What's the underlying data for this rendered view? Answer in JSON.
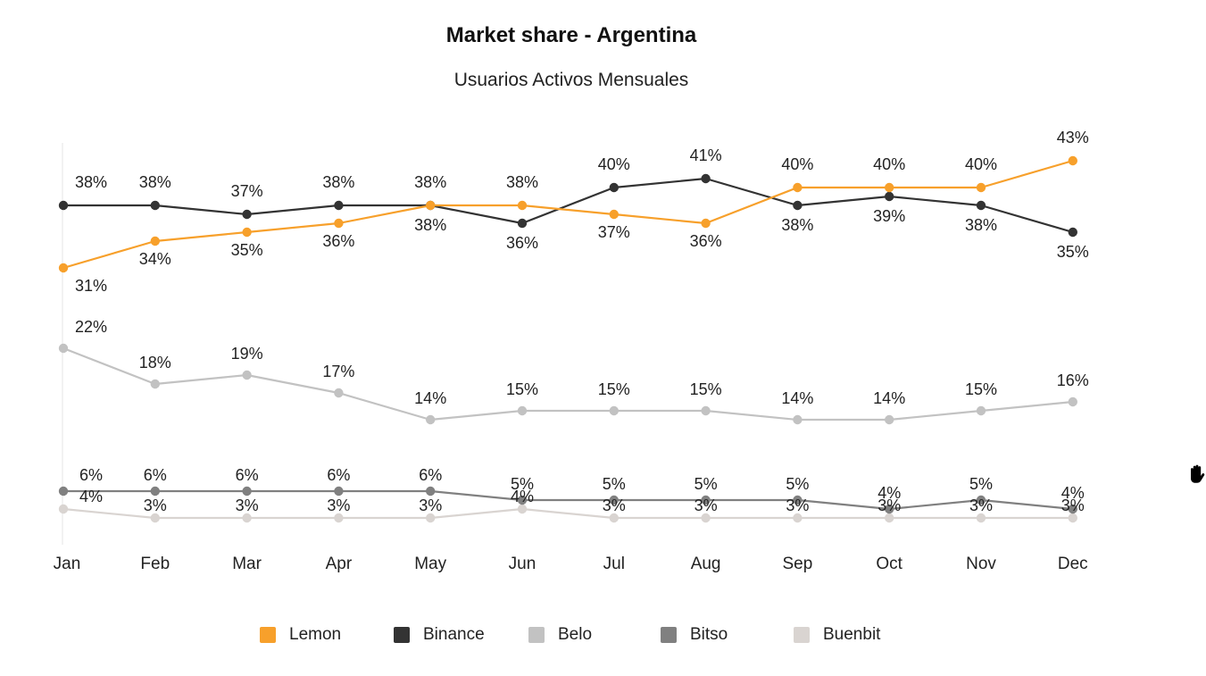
{
  "chart_data": {
    "type": "line",
    "title": "Market share - Argentina",
    "subtitle": "Usuarios Activos Mensuales",
    "xlabel": "",
    "ylabel": "",
    "categories": [
      "Jan",
      "Feb",
      "Mar",
      "Apr",
      "May",
      "Jun",
      "Jul",
      "Aug",
      "Sep",
      "Oct",
      "Nov",
      "Dec"
    ],
    "ylim": [
      0,
      45
    ],
    "grid": false,
    "legend_position": "bottom",
    "series": [
      {
        "name": "Lemon",
        "color": "#f7a02b",
        "values": [
          31,
          34,
          35,
          36,
          38,
          38,
          37,
          36,
          40,
          40,
          40,
          43
        ],
        "labels": [
          "31%",
          "34%",
          "35%",
          "36%",
          "38%",
          "38%",
          "37%",
          "36%",
          "40%",
          "40%",
          "40%",
          "43%"
        ]
      },
      {
        "name": "Binance",
        "color": "#333333",
        "values": [
          38,
          38,
          37,
          38,
          38,
          36,
          40,
          41,
          38,
          39,
          38,
          35
        ],
        "labels": [
          "38%",
          "38%",
          "37%",
          "38%",
          "38%",
          "36%",
          "40%",
          "41%",
          "38%",
          "39%",
          "38%",
          "35%"
        ]
      },
      {
        "name": "Belo",
        "color": "#c2c2c2",
        "values": [
          22,
          18,
          19,
          17,
          14,
          15,
          15,
          15,
          14,
          14,
          15,
          16
        ],
        "labels": [
          "22%",
          "18%",
          "19%",
          "17%",
          "14%",
          "15%",
          "15%",
          "15%",
          "14%",
          "14%",
          "15%",
          "16%"
        ]
      },
      {
        "name": "Bitso",
        "color": "#808080",
        "values": [
          6,
          6,
          6,
          6,
          6,
          5,
          5,
          5,
          5,
          4,
          5,
          4
        ],
        "labels": [
          "6%",
          "6%",
          "6%",
          "6%",
          "6%",
          "5%",
          "5%",
          "5%",
          "5%",
          "4%",
          "5%",
          "4%"
        ]
      },
      {
        "name": "Buenbit",
        "color": "#d9d4d1",
        "values": [
          4,
          3,
          3,
          3,
          3,
          4,
          3,
          3,
          3,
          3,
          3,
          3
        ],
        "labels": [
          "4%",
          "3%",
          "3%",
          "3%",
          "3%",
          "4%",
          "3%",
          "3%",
          "3%",
          "3%",
          "3%",
          "3%"
        ]
      }
    ]
  },
  "icons": {
    "cursor": "hand-icon"
  }
}
